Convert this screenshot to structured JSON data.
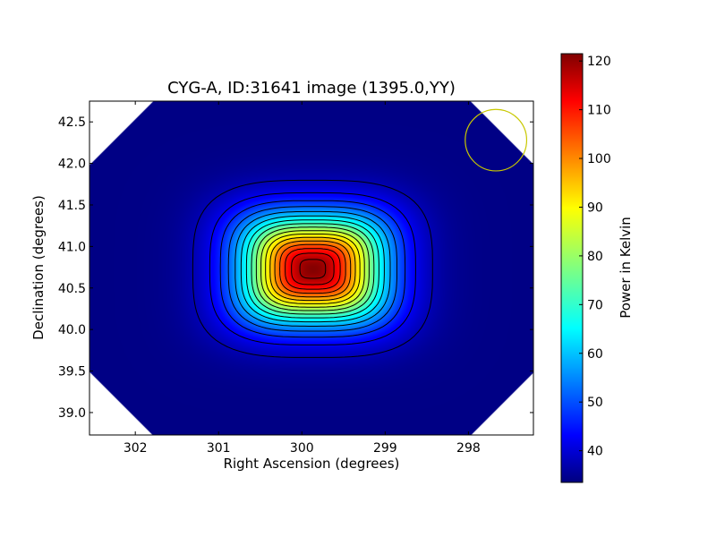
{
  "chart_data": {
    "type": "heatmap",
    "title": "CYG-A, ID:31641 image (1395.0,YY)",
    "xlabel": "Right Ascension (degrees)",
    "ylabel": "Declination (degrees)",
    "xlim": [
      302.55,
      297.22
    ],
    "ylim": [
      38.73,
      42.75
    ],
    "x_reversed": true,
    "x_ticks": [
      302,
      301,
      300,
      299,
      298
    ],
    "x_tick_labels": [
      "302",
      "301",
      "300",
      "299",
      "298"
    ],
    "y_ticks": [
      39.0,
      39.5,
      40.0,
      40.5,
      41.0,
      41.5,
      42.0,
      42.5
    ],
    "y_tick_labels": [
      "39.0",
      "39.5",
      "40.0",
      "40.5",
      "41.0",
      "41.5",
      "42.0",
      "42.5"
    ],
    "colorbar": {
      "label": "Power in Kelvin",
      "range": [
        33.5,
        121.5
      ],
      "ticks": [
        40,
        50,
        60,
        70,
        80,
        90,
        100,
        110,
        120
      ],
      "tick_labels": [
        "40",
        "50",
        "60",
        "70",
        "80",
        "90",
        "100",
        "110",
        "120"
      ],
      "colormap": "jet"
    },
    "source": {
      "ra": 299.87,
      "dec": 40.73,
      "peak_kelvin": 121.0,
      "background_kelvin": 34.0
    },
    "contour_levels": [
      38,
      43,
      48,
      53,
      58,
      63,
      68,
      73,
      78,
      83,
      88,
      93,
      98,
      103,
      108,
      113,
      118
    ],
    "beam_circle": {
      "ra": 297.67,
      "dec": 42.28,
      "radius_deg": 0.37,
      "color": "#c8c800"
    },
    "grid": false,
    "colors": {
      "background_field": "#0000a0",
      "contour": "#000000",
      "frame": "#000000"
    }
  }
}
